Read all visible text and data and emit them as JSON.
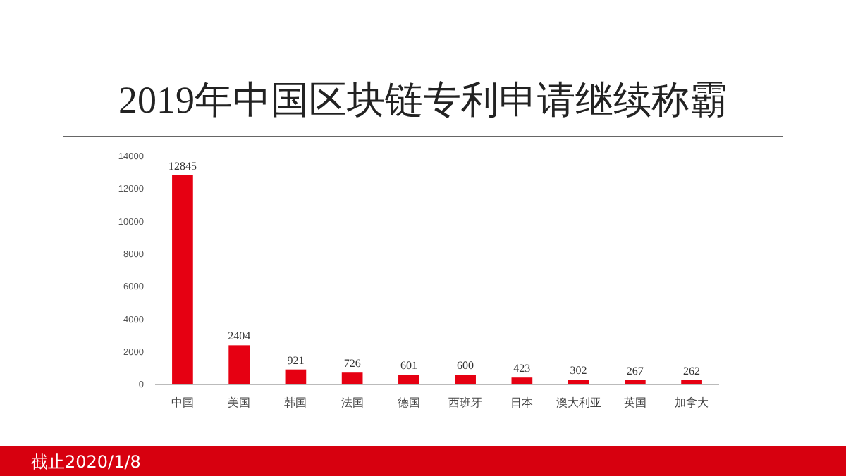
{
  "chart_data": {
    "type": "bar",
    "title": "2019年中国区块链专利申请继续称霸",
    "categories": [
      "中国",
      "美国",
      "韩国",
      "法国",
      "德国",
      "西班牙",
      "日本",
      "澳大利亚",
      "英国",
      "加拿大"
    ],
    "values": [
      12845,
      2404,
      921,
      726,
      601,
      600,
      423,
      302,
      267,
      262
    ],
    "color": "#e60012",
    "ylim": [
      0,
      14000
    ],
    "yticks": [
      0,
      2000,
      4000,
      6000,
      8000,
      10000,
      12000,
      14000
    ],
    "data_labels": true,
    "grid": false,
    "annotations": [
      "截止2020/1/8"
    ]
  }
}
